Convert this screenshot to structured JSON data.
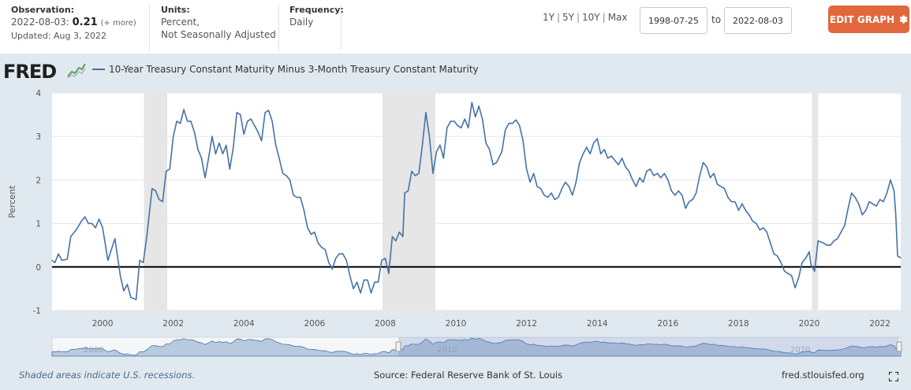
{
  "header": {
    "observation_label": "Observation:",
    "observation_date": "2022-08-03:",
    "observation_value": "0.21",
    "observation_more": "(+ more)",
    "updated": "Updated: Aug 3, 2022",
    "units_label": "Units:",
    "units_line1": "Percent,",
    "units_line2": "Not Seasonally Adjusted",
    "frequency_label": "Frequency:",
    "frequency_value": "Daily",
    "range_1y": "1Y",
    "range_5y": "5Y",
    "range_10y": "10Y",
    "range_max": "Max",
    "range_sep": "|",
    "start_date": "1998-07-25",
    "to_label": "to",
    "end_date": "2022-08-03",
    "edit_button": "EDIT GRAPH"
  },
  "brand": {
    "logo_text": "FRED",
    "accent": "#e2673d",
    "line_color": "#4572a7",
    "recession_color": "#e6e6e6",
    "panel_bg": "#e1e9f0"
  },
  "footer": {
    "note": "Shaded areas indicate U.S. recessions.",
    "source": "Source: Federal Reserve Bank of St. Louis",
    "site": "fred.stlouisfed.org"
  },
  "navigator_labels": [
    "2000",
    "2010",
    "2020"
  ],
  "chart_data": {
    "type": "line",
    "title": "",
    "legend": "10-Year Treasury Constant Maturity Minus 3-Month Treasury Constant Maturity",
    "xlabel": "",
    "ylabel": "Percent",
    "xlim": [
      1998.57,
      2022.59
    ],
    "ylim": [
      -1,
      4
    ],
    "x_ticks": [
      "2000",
      "2002",
      "2004",
      "2006",
      "2008",
      "2010",
      "2012",
      "2014",
      "2016",
      "2018",
      "2020",
      "2022"
    ],
    "y_ticks": [
      "-1",
      "0",
      "1",
      "2",
      "3",
      "4"
    ],
    "recessions": [
      [
        2001.17,
        2001.83
      ],
      [
        2007.92,
        2009.42
      ],
      [
        2020.08,
        2020.25
      ]
    ],
    "series": [
      {
        "name": "10-Year Treasury Constant Maturity Minus 3-Month Treasury Constant Maturity",
        "points": [
          [
            1998.57,
            0.15
          ],
          [
            1998.65,
            0.1
          ],
          [
            1998.75,
            0.3
          ],
          [
            1998.85,
            0.15
          ],
          [
            1999.0,
            0.18
          ],
          [
            1999.1,
            0.7
          ],
          [
            1999.25,
            0.85
          ],
          [
            1999.4,
            1.05
          ],
          [
            1999.5,
            1.15
          ],
          [
            1999.6,
            1.0
          ],
          [
            1999.7,
            1.0
          ],
          [
            1999.8,
            0.9
          ],
          [
            1999.9,
            1.1
          ],
          [
            2000.0,
            0.9
          ],
          [
            2000.15,
            0.15
          ],
          [
            2000.35,
            0.65
          ],
          [
            2000.5,
            -0.2
          ],
          [
            2000.6,
            -0.55
          ],
          [
            2000.7,
            -0.4
          ],
          [
            2000.8,
            -0.7
          ],
          [
            2000.95,
            -0.75
          ],
          [
            2001.05,
            0.15
          ],
          [
            2001.15,
            0.1
          ],
          [
            2001.25,
            0.7
          ],
          [
            2001.4,
            1.8
          ],
          [
            2001.5,
            1.75
          ],
          [
            2001.6,
            1.55
          ],
          [
            2001.7,
            1.5
          ],
          [
            2001.8,
            2.2
          ],
          [
            2001.9,
            2.25
          ],
          [
            2002.0,
            3.0
          ],
          [
            2002.1,
            3.35
          ],
          [
            2002.2,
            3.3
          ],
          [
            2002.3,
            3.62
          ],
          [
            2002.4,
            3.35
          ],
          [
            2002.5,
            3.35
          ],
          [
            2002.6,
            3.1
          ],
          [
            2002.7,
            2.7
          ],
          [
            2002.8,
            2.5
          ],
          [
            2002.9,
            2.05
          ],
          [
            2003.0,
            2.5
          ],
          [
            2003.1,
            3.0
          ],
          [
            2003.2,
            2.6
          ],
          [
            2003.3,
            2.85
          ],
          [
            2003.4,
            2.6
          ],
          [
            2003.5,
            2.8
          ],
          [
            2003.6,
            2.25
          ],
          [
            2003.7,
            2.75
          ],
          [
            2003.8,
            3.55
          ],
          [
            2003.9,
            3.5
          ],
          [
            2004.0,
            3.05
          ],
          [
            2004.1,
            3.35
          ],
          [
            2004.2,
            3.4
          ],
          [
            2004.3,
            3.25
          ],
          [
            2004.4,
            3.1
          ],
          [
            2004.5,
            2.9
          ],
          [
            2004.6,
            3.55
          ],
          [
            2004.7,
            3.6
          ],
          [
            2004.8,
            3.35
          ],
          [
            2004.9,
            2.8
          ],
          [
            2005.0,
            2.5
          ],
          [
            2005.1,
            2.15
          ],
          [
            2005.2,
            2.1
          ],
          [
            2005.3,
            2.0
          ],
          [
            2005.4,
            1.65
          ],
          [
            2005.5,
            1.6
          ],
          [
            2005.6,
            1.6
          ],
          [
            2005.7,
            1.3
          ],
          [
            2005.8,
            0.9
          ],
          [
            2005.9,
            0.75
          ],
          [
            2006.0,
            0.8
          ],
          [
            2006.1,
            0.55
          ],
          [
            2006.2,
            0.45
          ],
          [
            2006.3,
            0.4
          ],
          [
            2006.4,
            0.1
          ],
          [
            2006.5,
            -0.05
          ],
          [
            2006.6,
            0.2
          ],
          [
            2006.7,
            0.3
          ],
          [
            2006.8,
            0.3
          ],
          [
            2006.9,
            0.15
          ],
          [
            2007.0,
            -0.2
          ],
          [
            2007.1,
            -0.5
          ],
          [
            2007.2,
            -0.35
          ],
          [
            2007.3,
            -0.6
          ],
          [
            2007.4,
            -0.3
          ],
          [
            2007.5,
            -0.3
          ],
          [
            2007.6,
            -0.6
          ],
          [
            2007.7,
            -0.35
          ],
          [
            2007.8,
            -0.35
          ],
          [
            2007.9,
            0.15
          ],
          [
            2008.0,
            0.2
          ],
          [
            2008.1,
            -0.15
          ],
          [
            2008.2,
            0.7
          ],
          [
            2008.3,
            0.6
          ],
          [
            2008.4,
            0.8
          ],
          [
            2008.5,
            0.7
          ],
          [
            2008.55,
            1.7
          ],
          [
            2008.65,
            1.75
          ],
          [
            2008.75,
            2.2
          ],
          [
            2008.85,
            2.1
          ],
          [
            2008.95,
            2.15
          ],
          [
            2009.05,
            2.8
          ],
          [
            2009.15,
            3.55
          ],
          [
            2009.25,
            3.0
          ],
          [
            2009.35,
            2.15
          ],
          [
            2009.45,
            2.65
          ],
          [
            2009.55,
            2.8
          ],
          [
            2009.65,
            2.5
          ],
          [
            2009.75,
            3.2
          ],
          [
            2009.85,
            3.35
          ],
          [
            2009.95,
            3.35
          ],
          [
            2010.05,
            3.25
          ],
          [
            2010.15,
            3.2
          ],
          [
            2010.25,
            3.4
          ],
          [
            2010.35,
            3.2
          ],
          [
            2010.45,
            3.78
          ],
          [
            2010.55,
            3.45
          ],
          [
            2010.65,
            3.7
          ],
          [
            2010.75,
            3.4
          ],
          [
            2010.85,
            2.85
          ],
          [
            2010.95,
            2.7
          ],
          [
            2011.05,
            2.35
          ],
          [
            2011.15,
            2.4
          ],
          [
            2011.3,
            2.65
          ],
          [
            2011.4,
            3.15
          ],
          [
            2011.5,
            3.3
          ],
          [
            2011.6,
            3.3
          ],
          [
            2011.7,
            3.38
          ],
          [
            2011.8,
            3.25
          ],
          [
            2011.9,
            2.9
          ],
          [
            2012.0,
            2.25
          ],
          [
            2012.1,
            1.95
          ],
          [
            2012.2,
            2.15
          ],
          [
            2012.3,
            1.85
          ],
          [
            2012.4,
            1.8
          ],
          [
            2012.5,
            1.65
          ],
          [
            2012.6,
            1.6
          ],
          [
            2012.7,
            1.7
          ],
          [
            2012.8,
            1.55
          ],
          [
            2012.9,
            1.6
          ],
          [
            2013.0,
            1.8
          ],
          [
            2013.1,
            1.95
          ],
          [
            2013.2,
            1.85
          ],
          [
            2013.3,
            1.65
          ],
          [
            2013.4,
            1.95
          ],
          [
            2013.5,
            2.4
          ],
          [
            2013.6,
            2.6
          ],
          [
            2013.7,
            2.75
          ],
          [
            2013.8,
            2.6
          ],
          [
            2013.9,
            2.85
          ],
          [
            2014.0,
            2.95
          ],
          [
            2014.1,
            2.6
          ],
          [
            2014.2,
            2.7
          ],
          [
            2014.3,
            2.5
          ],
          [
            2014.4,
            2.55
          ],
          [
            2014.5,
            2.45
          ],
          [
            2014.6,
            2.35
          ],
          [
            2014.7,
            2.5
          ],
          [
            2014.8,
            2.3
          ],
          [
            2014.9,
            2.2
          ],
          [
            2015.0,
            2.0
          ],
          [
            2015.1,
            1.85
          ],
          [
            2015.2,
            2.05
          ],
          [
            2015.3,
            1.95
          ],
          [
            2015.4,
            2.2
          ],
          [
            2015.5,
            2.25
          ],
          [
            2015.6,
            2.1
          ],
          [
            2015.7,
            2.15
          ],
          [
            2015.8,
            2.05
          ],
          [
            2015.9,
            2.15
          ],
          [
            2016.0,
            2.0
          ],
          [
            2016.1,
            1.75
          ],
          [
            2016.2,
            1.65
          ],
          [
            2016.3,
            1.75
          ],
          [
            2016.4,
            1.65
          ],
          [
            2016.5,
            1.35
          ],
          [
            2016.6,
            1.5
          ],
          [
            2016.7,
            1.55
          ],
          [
            2016.8,
            1.7
          ],
          [
            2016.9,
            2.1
          ],
          [
            2017.0,
            2.4
          ],
          [
            2017.1,
            2.3
          ],
          [
            2017.2,
            2.05
          ],
          [
            2017.3,
            2.15
          ],
          [
            2017.4,
            1.9
          ],
          [
            2017.5,
            1.85
          ],
          [
            2017.6,
            1.8
          ],
          [
            2017.7,
            1.6
          ],
          [
            2017.8,
            1.5
          ],
          [
            2017.9,
            1.5
          ],
          [
            2018.0,
            1.3
          ],
          [
            2018.1,
            1.45
          ],
          [
            2018.2,
            1.3
          ],
          [
            2018.3,
            1.2
          ],
          [
            2018.4,
            1.05
          ],
          [
            2018.5,
            1.0
          ],
          [
            2018.6,
            0.85
          ],
          [
            2018.7,
            0.9
          ],
          [
            2018.8,
            0.8
          ],
          [
            2018.9,
            0.55
          ],
          [
            2019.0,
            0.3
          ],
          [
            2019.1,
            0.25
          ],
          [
            2019.2,
            0.1
          ],
          [
            2019.3,
            -0.1
          ],
          [
            2019.4,
            -0.15
          ],
          [
            2019.5,
            -0.2
          ],
          [
            2019.6,
            -0.48
          ],
          [
            2019.7,
            -0.25
          ],
          [
            2019.8,
            0.1
          ],
          [
            2019.9,
            0.2
          ],
          [
            2020.0,
            0.35
          ],
          [
            2020.05,
            0.05
          ],
          [
            2020.15,
            -0.1
          ],
          [
            2020.25,
            0.6
          ],
          [
            2020.4,
            0.55
          ],
          [
            2020.5,
            0.5
          ],
          [
            2020.6,
            0.5
          ],
          [
            2020.7,
            0.6
          ],
          [
            2020.8,
            0.65
          ],
          [
            2020.9,
            0.8
          ],
          [
            2021.0,
            0.95
          ],
          [
            2021.1,
            1.35
          ],
          [
            2021.2,
            1.7
          ],
          [
            2021.3,
            1.6
          ],
          [
            2021.4,
            1.45
          ],
          [
            2021.5,
            1.2
          ],
          [
            2021.6,
            1.3
          ],
          [
            2021.7,
            1.5
          ],
          [
            2021.8,
            1.45
          ],
          [
            2021.9,
            1.4
          ],
          [
            2022.0,
            1.55
          ],
          [
            2022.1,
            1.5
          ],
          [
            2022.2,
            1.7
          ],
          [
            2022.3,
            2.0
          ],
          [
            2022.4,
            1.75
          ],
          [
            2022.45,
            1.2
          ],
          [
            2022.5,
            0.25
          ],
          [
            2022.59,
            0.21
          ]
        ]
      }
    ]
  }
}
